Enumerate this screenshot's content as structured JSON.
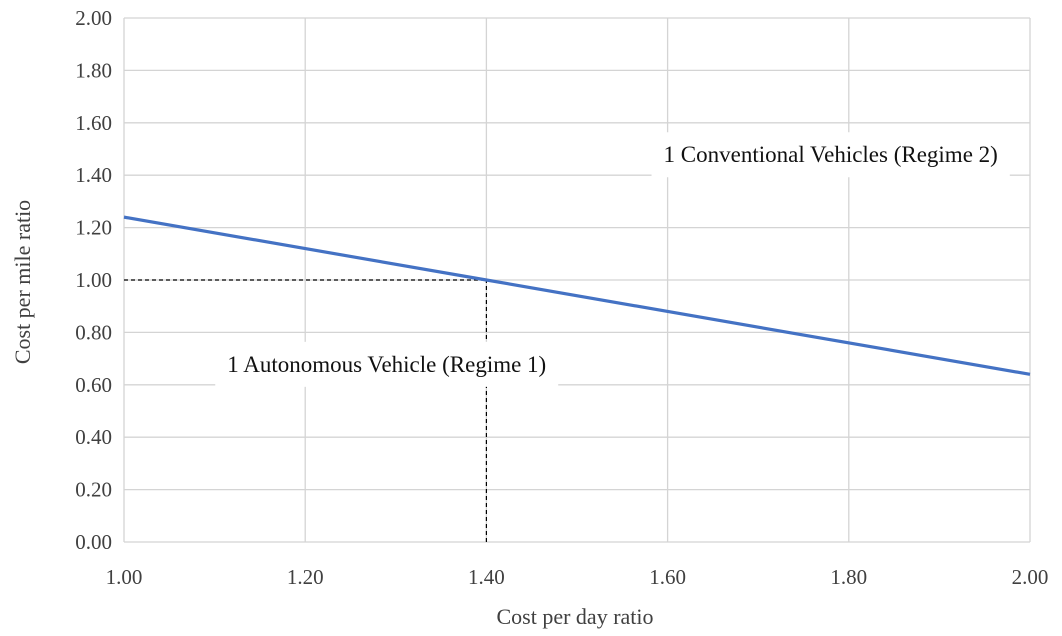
{
  "chart_data": {
    "type": "line",
    "title": "",
    "xlabel": "Cost per day ratio",
    "ylabel": "Cost  per mile ratio",
    "xlim": [
      1.0,
      2.0
    ],
    "ylim": [
      0.0,
      2.0
    ],
    "x_ticks": [
      "1.00",
      "1.20",
      "1.40",
      "1.60",
      "1.80",
      "2.00"
    ],
    "y_ticks": [
      "0.00",
      "0.20",
      "0.40",
      "0.60",
      "0.80",
      "1.00",
      "1.20",
      "1.40",
      "1.60",
      "1.80",
      "2.00"
    ],
    "grid": true,
    "legend": "none",
    "series": [
      {
        "color": "#4472C4",
        "x": [
          1.0,
          1.4,
          2.0
        ],
        "y": [
          1.24,
          1.0,
          0.64
        ]
      }
    ],
    "reference_lines": [
      {
        "type": "horizontal",
        "y": 1.0,
        "x_from": 1.0,
        "x_to": 1.4,
        "style": "dashed",
        "color": "#000000"
      },
      {
        "type": "vertical",
        "x": 1.4,
        "y_from": 0.0,
        "y_to": 1.0,
        "style": "dashed",
        "color": "#000000"
      }
    ],
    "annotations": [
      {
        "text": "1 Conventional Vehicles (Regime 2)",
        "x": 1.78,
        "y": 1.48
      },
      {
        "text": "1 Autonomous Vehicle (Regime 1)",
        "x": 1.29,
        "y": 0.68
      }
    ]
  }
}
